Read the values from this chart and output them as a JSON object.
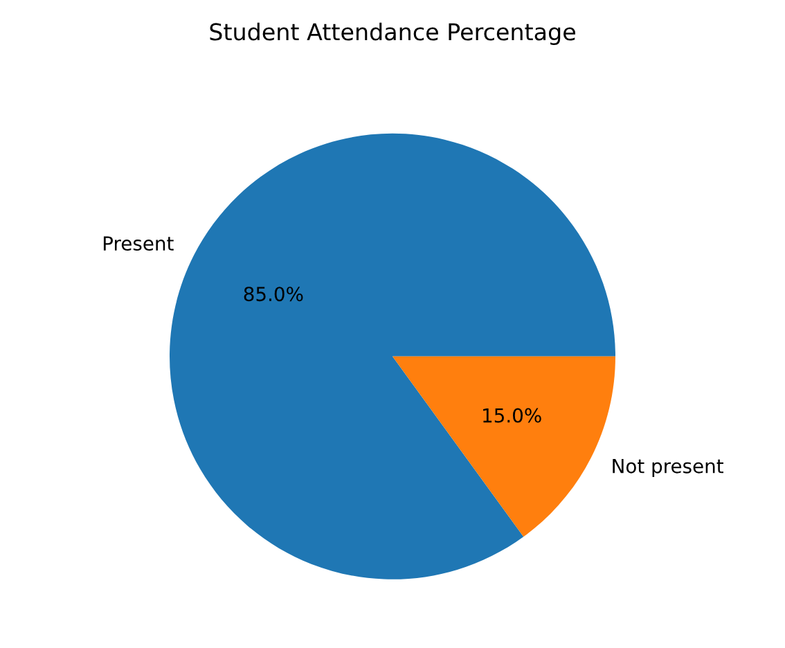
{
  "chart_data": {
    "type": "pie",
    "title": "Student Attendance Percentage",
    "categories": [
      "Present",
      "Not present"
    ],
    "values": [
      85,
      15
    ],
    "colors": [
      "#1f77b4",
      "#ff7f0e"
    ],
    "value_labels": [
      "85.0%",
      "15.0%"
    ]
  }
}
